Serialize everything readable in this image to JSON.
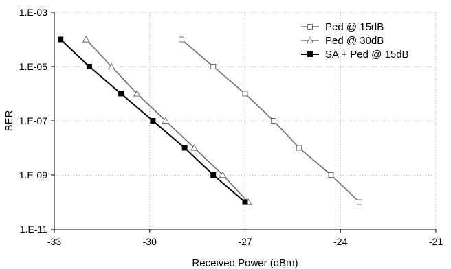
{
  "chart_data": {
    "type": "line",
    "title": "",
    "xlabel": "Received Power (dBm)",
    "ylabel": "BER",
    "x_scale": "linear",
    "y_scale": "log",
    "xlim": [
      -33,
      -21
    ],
    "ylim": [
      1e-11,
      0.001
    ],
    "x_ticks": [
      -33,
      -30,
      -27,
      -24,
      -21
    ],
    "x_tick_labels": [
      "-33",
      "-30",
      "-27",
      "-24",
      "-21"
    ],
    "y_ticks": [
      0.001,
      1e-05,
      1e-07,
      1e-09,
      1e-11
    ],
    "y_tick_labels": [
      "1.E-03",
      "1.E-05",
      "1.E-07",
      "1.E-09",
      "1.E-11"
    ],
    "grid": "dotted, major ticks",
    "legend_position": "top-right",
    "series": [
      {
        "name": "Ped @ 15dB",
        "marker": "open-square",
        "color": "#707070",
        "points": [
          {
            "x": -29.0,
            "y": 0.0001
          },
          {
            "x": -28.0,
            "y": 1e-05
          },
          {
            "x": -27.0,
            "y": 1e-06
          },
          {
            "x": -26.1,
            "y": 1e-07
          },
          {
            "x": -25.3,
            "y": 1e-08
          },
          {
            "x": -24.3,
            "y": 1e-09
          },
          {
            "x": -23.4,
            "y": 1e-10
          }
        ]
      },
      {
        "name": "Ped @ 30dB",
        "marker": "open-triangle",
        "color": "#707070",
        "points": [
          {
            "x": -32.0,
            "y": 0.0001
          },
          {
            "x": -31.2,
            "y": 1e-05
          },
          {
            "x": -30.4,
            "y": 1e-06
          },
          {
            "x": -29.5,
            "y": 1e-07
          },
          {
            "x": -28.6,
            "y": 1e-08
          },
          {
            "x": -27.7,
            "y": 1e-09
          },
          {
            "x": -26.9,
            "y": 1e-10
          }
        ]
      },
      {
        "name": "SA + Ped @ 15dB",
        "marker": "filled-square",
        "color": "#000000",
        "points": [
          {
            "x": -32.8,
            "y": 0.0001
          },
          {
            "x": -31.9,
            "y": 1e-05
          },
          {
            "x": -30.9,
            "y": 1e-06
          },
          {
            "x": -29.9,
            "y": 1e-07
          },
          {
            "x": -28.9,
            "y": 1e-08
          },
          {
            "x": -28.0,
            "y": 1e-09
          },
          {
            "x": -27.0,
            "y": 1e-10
          }
        ]
      }
    ]
  }
}
